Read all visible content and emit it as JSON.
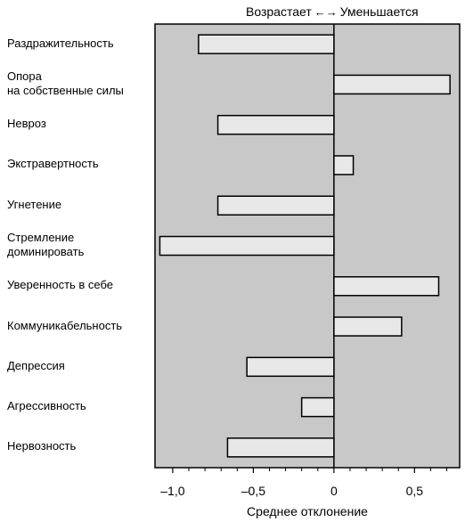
{
  "chart_data": {
    "type": "bar",
    "orientation": "horizontal",
    "annotation": {
      "left_text": "Возрастает",
      "arrow": "←→",
      "right_text": "Уменьшается"
    },
    "categories": [
      "Раздражительность",
      "Опора\nна собственные силы",
      "Невроз",
      "Экстравертность",
      "Угнетение",
      "Стремление\nдоминировать",
      "Уверенность в себе",
      "Коммуникабельность",
      "Депрессия",
      "Агрессивность",
      "Нервозность"
    ],
    "values": [
      -0.84,
      0.72,
      -0.72,
      0.12,
      -0.72,
      -1.08,
      0.65,
      0.42,
      -0.54,
      -0.2,
      -0.66
    ],
    "xlabel": "Среднее отклонение",
    "ylabel": "",
    "xlim": [
      -1.11,
      0.78
    ],
    "x_ticks": [
      -1.0,
      -0.5,
      0,
      0.5
    ],
    "x_tick_labels": [
      "–1,0",
      "–0,5",
      "0",
      "0,5"
    ],
    "colors": {
      "plot_background": "#c8c8c8",
      "bar_fill": "#e8e8e8",
      "bar_stroke": "#000000"
    },
    "grid": false
  }
}
